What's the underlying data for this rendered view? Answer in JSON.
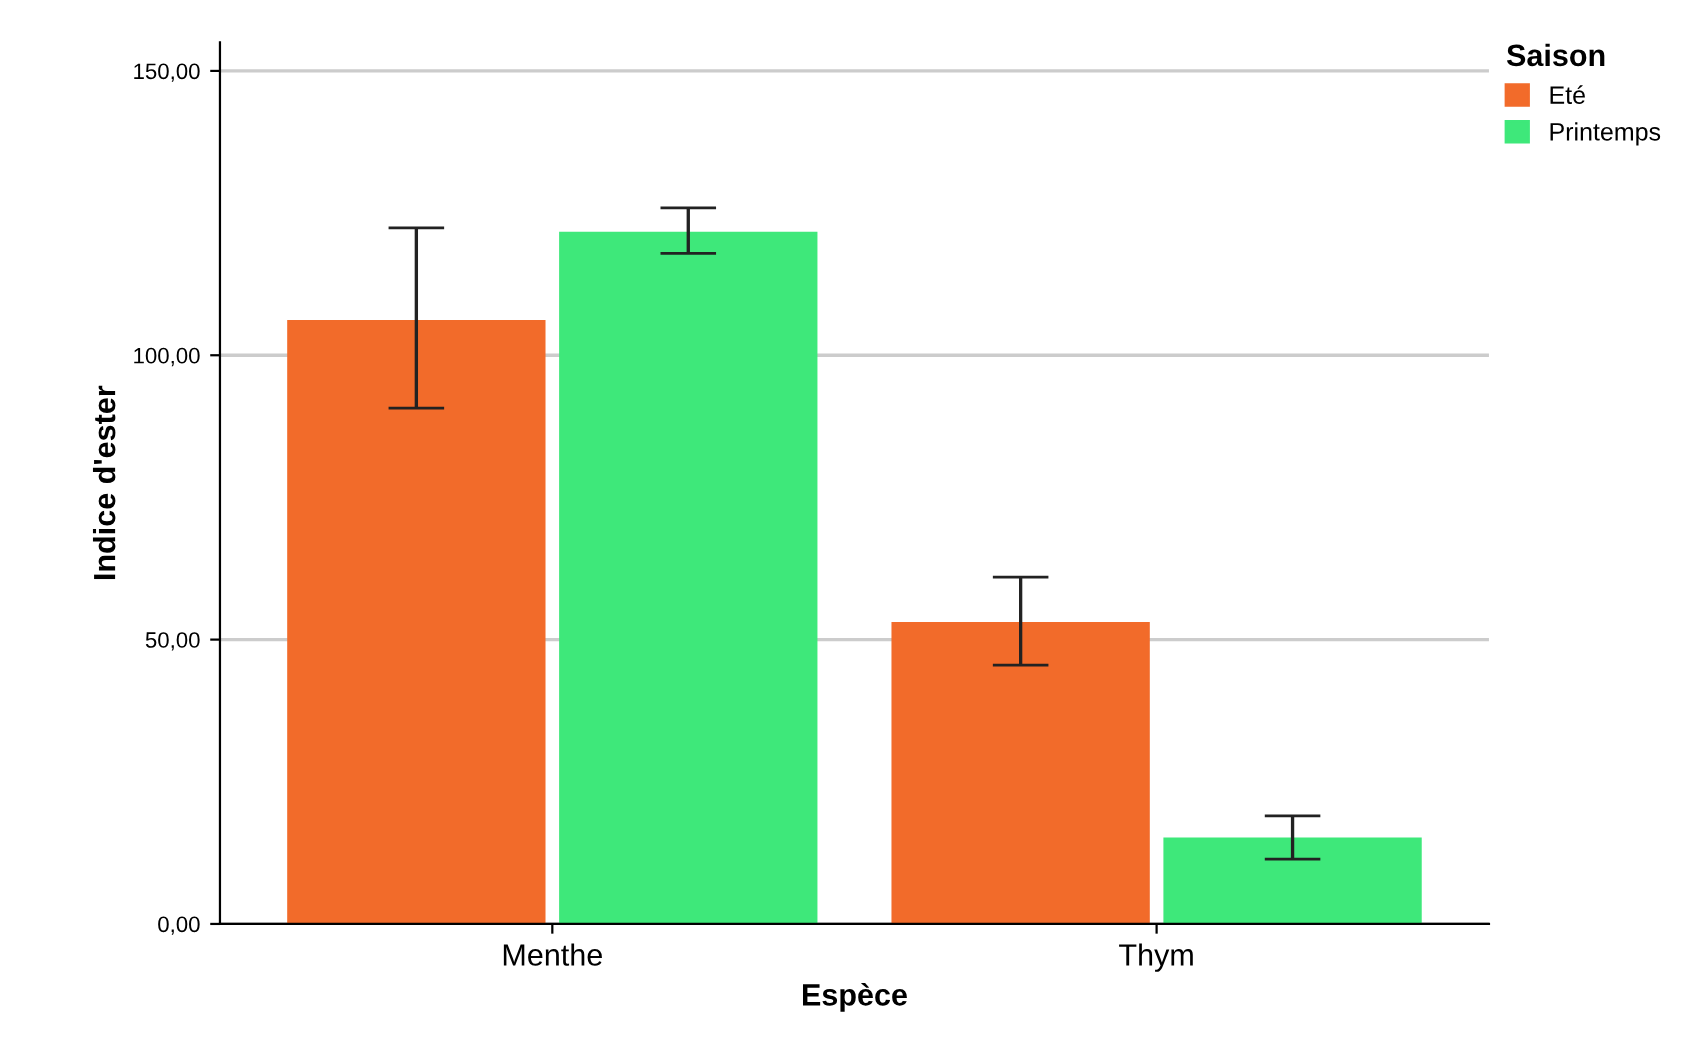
{
  "chart_data": {
    "type": "bar",
    "xlabel": "Espèce",
    "ylabel": "Indice d'ester",
    "legend_title": "Saison",
    "categories": [
      "Menthe",
      "Thym"
    ],
    "series": [
      {
        "name": "Eté",
        "color": "#f26b2a",
        "values": [
          106.2,
          53.1
        ],
        "errors": [
          [
            90.7,
            122.4
          ],
          [
            45.5,
            61.0
          ]
        ]
      },
      {
        "name": "Printemps",
        "color": "#3ee87a",
        "values": [
          121.7,
          15.2
        ],
        "errors": [
          [
            117.9,
            125.9
          ],
          [
            11.4,
            19.0
          ]
        ]
      }
    ],
    "ylim": [
      0,
      155
    ],
    "yticks": [
      {
        "value": 0,
        "label": "0,00"
      },
      {
        "value": 50,
        "label": "50,00"
      },
      {
        "value": 100,
        "label": "100,00"
      },
      {
        "value": 150,
        "label": "150,00"
      }
    ],
    "grid": "y",
    "legend": "top right"
  }
}
